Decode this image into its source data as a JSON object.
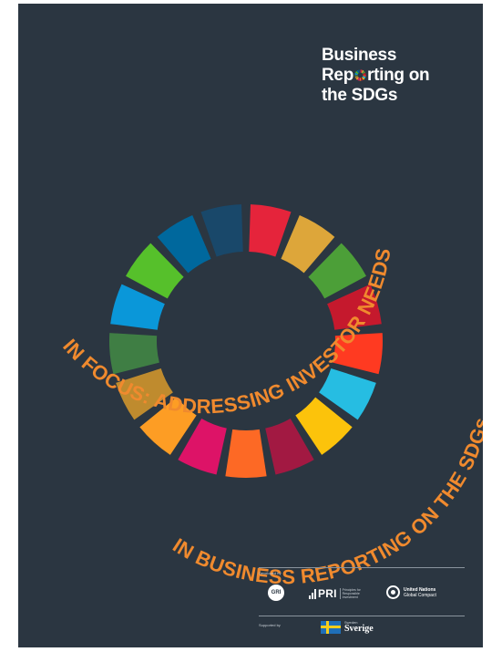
{
  "title": {
    "line1": "Business",
    "line2_prefix": "Rep",
    "line2_suffix": "rting on",
    "line3": "the SDGs"
  },
  "headline": {
    "line1": "IN FOCUS: ADDRESSING INVESTOR NEEDS",
    "line2": "IN BUSINESS REPORTING ON THE SDGs"
  },
  "colors": {
    "background": "#2b3641",
    "headline": "#f08a2e",
    "sdg_wheel": [
      "#e5243b",
      "#dda63a",
      "#4c9f38",
      "#c5192d",
      "#ff3a21",
      "#26bde2",
      "#fcc30b",
      "#a21942",
      "#fd6925",
      "#dd1367",
      "#fd9d24",
      "#bf8b2e",
      "#3f7e44",
      "#0a97d9",
      "#56c02b",
      "#00689d",
      "#19486a"
    ]
  },
  "footer": {
    "developed_by": "Developed by",
    "supported_by": "Supported by",
    "gri": "GRI",
    "pri": "PRI",
    "pri_sub": [
      "Principles for",
      "Responsible",
      "Investment"
    ],
    "un_line1": "United Nations",
    "un_line2": "Global Compact",
    "sweden_small": "Sweden",
    "sweden_big": "Sverige"
  }
}
